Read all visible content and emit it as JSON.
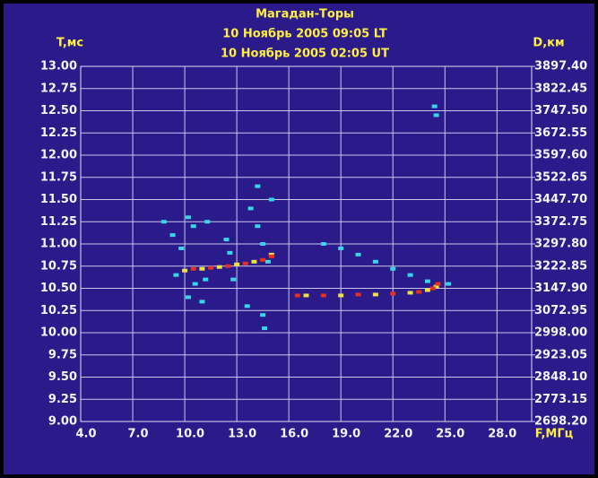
{
  "chart_data": {
    "type": "scatter",
    "title": "Магадан-Торы",
    "subtitle": [
      "10 Ноябрь 2005 09:05 LT",
      "10 Ноябрь 2005 02:05 UT"
    ],
    "ylabel": "T,мс",
    "y2label": "D,км",
    "xlabel": "F,МГц",
    "xlim": [
      4,
      30
    ],
    "ylim": [
      9,
      13
    ],
    "y2lim": [
      2698.2,
      3897.4
    ],
    "grid": true,
    "xticks": [
      {
        "value": 4,
        "label": "4.0"
      },
      {
        "value": 7,
        "label": "7.0"
      },
      {
        "value": 10,
        "label": "10.0"
      },
      {
        "value": 13,
        "label": "13.0"
      },
      {
        "value": 16,
        "label": "16.0"
      },
      {
        "value": 19,
        "label": "19.0"
      },
      {
        "value": 22,
        "label": "22.0"
      },
      {
        "value": 25,
        "label": "25.0"
      },
      {
        "value": 28,
        "label": "28.0"
      }
    ],
    "yticks": [
      {
        "value": 9,
        "label": "9.00"
      },
      9.25,
      {
        "value": 9.5,
        "label": "9.50"
      },
      9.75,
      {
        "value": 10,
        "label": "10.00"
      },
      10.25,
      {
        "value": 10.5,
        "label": "10.50"
      },
      10.75,
      {
        "value": 11,
        "label": "11.00"
      },
      11.25,
      {
        "value": 11.5,
        "label": "11.50"
      },
      11.75,
      {
        "value": 12,
        "label": "12.00"
      },
      12.25,
      {
        "value": 12.5,
        "label": "12.50"
      },
      12.75,
      {
        "value": 13,
        "label": "13.00"
      }
    ],
    "y2ticks": [
      {
        "value": 2698.2,
        "label": "2698.20"
      },
      2773.15,
      {
        "value": 2848.1,
        "label": "2848.10"
      },
      2923.05,
      {
        "value": 2998,
        "label": "2998.00"
      },
      3072.95,
      {
        "value": 3147.9,
        "label": "3147.90"
      },
      3222.85,
      {
        "value": 3297.8,
        "label": "3297.80"
      },
      3372.75,
      {
        "value": 3447.7,
        "label": "3447.70"
      },
      3522.65,
      {
        "value": 3597.6,
        "label": "3597.60"
      },
      3672.55,
      {
        "value": 3747.5,
        "label": "3747.50"
      },
      3822.45,
      {
        "value": 3897.4,
        "label": "3897.40"
      }
    ],
    "series": [
      {
        "color": "#39d6e8",
        "x": [
          18,
          19,
          20,
          21,
          22,
          23,
          24,
          25.2,
          8.8,
          9.3,
          9.8,
          10.2,
          10.5,
          10.2,
          11.0,
          11.3,
          12.4,
          12.6,
          12.8,
          13.8,
          14.2,
          14.5,
          14.8,
          14.5,
          15.0,
          10.6,
          11.2,
          9.5,
          14.6,
          24.4,
          24.5,
          13.6,
          14.2
        ],
        "values": [
          11.0,
          10.95,
          10.88,
          10.8,
          10.72,
          10.65,
          10.58,
          10.55,
          11.25,
          11.1,
          10.95,
          11.3,
          11.2,
          10.4,
          10.35,
          11.25,
          11.05,
          10.9,
          10.6,
          11.4,
          11.2,
          11.0,
          10.8,
          10.2,
          11.5,
          10.55,
          10.6,
          10.65,
          10.05,
          12.55,
          12.45,
          10.3,
          11.65
        ]
      },
      {
        "color": "#f0e040",
        "x": [
          10.0,
          11.0,
          12.0,
          13.0,
          14.0,
          15.0,
          17,
          19,
          21,
          23,
          24,
          24.5
        ],
        "values": [
          10.7,
          10.72,
          10.74,
          10.77,
          10.8,
          10.88,
          10.42,
          10.42,
          10.43,
          10.45,
          10.48,
          10.52
        ]
      },
      {
        "color": "#e83020",
        "x": [
          10.5,
          11.5,
          12.5,
          13.5,
          14.5,
          15.0,
          16.5,
          18,
          20,
          22,
          23.5,
          24.3,
          24.6
        ],
        "values": [
          10.72,
          10.73,
          10.75,
          10.78,
          10.82,
          10.86,
          10.42,
          10.42,
          10.43,
          10.44,
          10.46,
          10.5,
          10.55
        ]
      }
    ]
  }
}
